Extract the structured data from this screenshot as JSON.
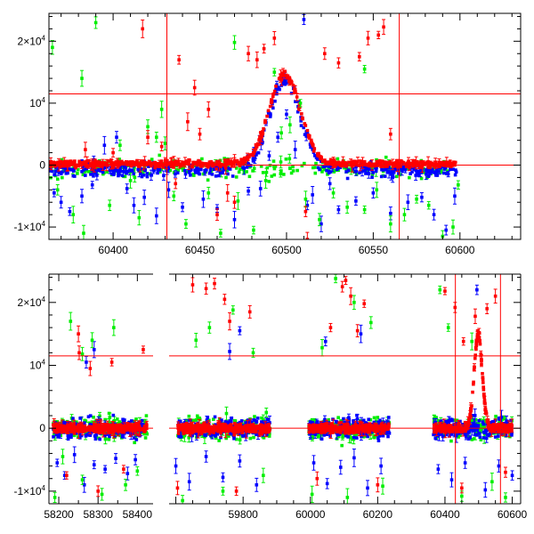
{
  "colors": {
    "red": "#ff0000",
    "green": "#00ee00",
    "blue": "#0000ff",
    "frame": "#000000"
  },
  "chart_data": [
    {
      "type": "scatter",
      "title": "",
      "xlabel": "",
      "ylabel": "",
      "xlim": [
        60363,
        60635
      ],
      "ylim": [
        -12000,
        24500
      ],
      "xticks": [
        {
          "value": 60400,
          "label": "60400"
        },
        {
          "value": 60450,
          "label": "60450"
        },
        {
          "value": 60500,
          "label": "60500"
        },
        {
          "value": 60550,
          "label": "60550"
        },
        {
          "value": 60600,
          "label": "60600"
        }
      ],
      "yticks": [
        {
          "value": -10000,
          "label": "-1×10",
          "exp": "4"
        },
        {
          "value": 0,
          "label": "0",
          "exp": ""
        },
        {
          "value": 10000,
          "label": "10",
          "exp": "4"
        },
        {
          "value": 20000,
          "label": "2×10",
          "exp": "4"
        }
      ],
      "vlines": [
        60431,
        60565
      ],
      "hlines": [
        11500,
        0
      ],
      "series": [
        {
          "color": "blue",
          "values": [
            [
              60366,
              -4500
            ],
            [
              60370,
              -6000
            ],
            [
              60375,
              -7500
            ],
            [
              60382,
              -5000
            ],
            [
              60388,
              -3200
            ],
            [
              60395,
              3200
            ],
            [
              60402,
              4500
            ],
            [
              60408,
              -3800
            ],
            [
              60412,
              -6500
            ],
            [
              60418,
              -5200
            ],
            [
              60425,
              -8200
            ],
            [
              60432,
              -4000
            ],
            [
              60440,
              -6800
            ],
            [
              60452,
              -5500
            ],
            [
              60460,
              -7000
            ],
            [
              60470,
              -8800
            ],
            [
              60478,
              -4200
            ],
            [
              60485,
              -3800
            ],
            [
              60490,
              1500
            ],
            [
              60495,
              4500
            ],
            [
              60500,
              8200
            ],
            [
              60505,
              2500
            ],
            [
              60510,
              23500
            ],
            [
              60512,
              -6500
            ],
            [
              60515,
              -4800
            ],
            [
              60520,
              -9500
            ],
            [
              60525,
              -3000
            ],
            [
              60530,
              -7200
            ],
            [
              60540,
              -5800
            ],
            [
              60550,
              -4500
            ],
            [
              60560,
              -7800
            ],
            [
              60570,
              -6000
            ],
            [
              60578,
              -5200
            ],
            [
              60585,
              -8000
            ],
            [
              60592,
              -10500
            ],
            [
              60597,
              -5000
            ]
          ]
        },
        {
          "color": "green",
          "values": [
            [
              60365,
              19000
            ],
            [
              60368,
              -4000
            ],
            [
              60377,
              -8000
            ],
            [
              60383,
              -11000
            ],
            [
              60390,
              23000
            ],
            [
              60398,
              -6500
            ],
            [
              60404,
              3200
            ],
            [
              60410,
              -2500
            ],
            [
              60415,
              -8500
            ],
            [
              60420,
              6200
            ],
            [
              60425,
              4500
            ],
            [
              60428,
              9000
            ],
            [
              60430,
              3500
            ],
            [
              60435,
              -5000
            ],
            [
              60442,
              -9500
            ],
            [
              60455,
              -4500
            ],
            [
              60462,
              -11000
            ],
            [
              60472,
              -5800
            ],
            [
              60481,
              -10500
            ],
            [
              60488,
              -2500
            ],
            [
              60493,
              15000
            ],
            [
              60497,
              5200
            ],
            [
              60502,
              6500
            ],
            [
              60508,
              10000
            ],
            [
              60511,
              -5500
            ],
            [
              60519,
              -8800
            ],
            [
              60527,
              -4500
            ],
            [
              60535,
              -6800
            ],
            [
              60545,
              -7200
            ],
            [
              60552,
              -4000
            ],
            [
              60560,
              -9500
            ],
            [
              60568,
              -8000
            ],
            [
              60575,
              -5500
            ],
            [
              60582,
              -6500
            ],
            [
              60590,
              -11500
            ],
            [
              60596,
              -10000
            ],
            [
              60599,
              -3200
            ],
            [
              60382,
              14000
            ],
            [
              60545,
              15500
            ],
            [
              60470,
              19800
            ]
          ]
        },
        {
          "color": "red",
          "values": [
            [
              60417,
              22000
            ],
            [
              60438,
              17000
            ],
            [
              60443,
              7000
            ],
            [
              60447,
              12500
            ],
            [
              60450,
              5000
            ],
            [
              60455,
              9000
            ],
            [
              60460,
              -8000
            ],
            [
              60466,
              -4500
            ],
            [
              60478,
              18000
            ],
            [
              60483,
              17000
            ],
            [
              60487,
              18800
            ],
            [
              60493,
              20500
            ],
            [
              60506,
              11000
            ],
            [
              60511,
              -7500
            ],
            [
              60522,
              18000
            ],
            [
              60530,
              16500
            ],
            [
              60542,
              17500
            ],
            [
              60547,
              20500
            ],
            [
              60553,
              21000
            ],
            [
              60556,
              22300
            ],
            [
              60560,
              5000
            ],
            [
              60512,
              -12000
            ],
            [
              60420,
              4500
            ],
            [
              60428,
              3000
            ],
            [
              60384,
              2500
            ],
            [
              60400,
              2000
            ],
            [
              60436,
              -3000
            ],
            [
              60470,
              -6000
            ]
          ]
        }
      ]
    },
    {
      "type": "scatter",
      "title": "",
      "xlabel": "",
      "ylabel": "",
      "x_segments": [
        {
          "xlim": [
            58175,
            58440
          ],
          "ticks": [
            {
              "value": 58200,
              "label": "58200"
            },
            {
              "value": 58300,
              "label": "58300"
            },
            {
              "value": 58400,
              "label": "58400"
            }
          ]
        },
        {
          "xlim": [
            59580,
            60625
          ],
          "ticks": [
            {
              "value": 59800,
              "label": "59800"
            },
            {
              "value": 60000,
              "label": "60000"
            },
            {
              "value": 60200,
              "label": "60200"
            },
            {
              "value": 60400,
              "label": "60400"
            },
            {
              "value": 60600,
              "label": "60600"
            }
          ]
        }
      ],
      "ylim": [
        -12000,
        24500
      ],
      "yticks": [
        {
          "value": -10000,
          "label": "-1×10",
          "exp": "4"
        },
        {
          "value": 0,
          "label": "0",
          "exp": ""
        },
        {
          "value": 10000,
          "label": "10",
          "exp": "4"
        },
        {
          "value": 20000,
          "label": "2×10",
          "exp": "4"
        }
      ],
      "vlines": [
        60431,
        60565
      ],
      "hlines": [
        11500,
        0
      ],
      "series": [
        {
          "color": "blue",
          "values": [
            [
              58196,
              -5500
            ],
            [
              58215,
              -7500
            ],
            [
              58240,
              -4200
            ],
            [
              58265,
              -9000
            ],
            [
              58290,
              -5800
            ],
            [
              58318,
              -6500
            ],
            [
              58345,
              -4800
            ],
            [
              58375,
              -7200
            ],
            [
              58395,
              -5000
            ],
            [
              58290,
              12500
            ],
            [
              58270,
              10500
            ],
            [
              59600,
              -6000
            ],
            [
              59640,
              -8500
            ],
            [
              59690,
              -4500
            ],
            [
              59740,
              -7800
            ],
            [
              59790,
              -5200
            ],
            [
              59840,
              -9000
            ],
            [
              59790,
              15500
            ],
            [
              59760,
              12200
            ],
            [
              60010,
              -5500
            ],
            [
              60050,
              -8800
            ],
            [
              60090,
              -6200
            ],
            [
              60130,
              -4700
            ],
            [
              60170,
              -9500
            ],
            [
              60210,
              -6000
            ],
            [
              60045,
              13800
            ],
            [
              60150,
              15000
            ],
            [
              60380,
              -6500
            ],
            [
              60420,
              -8200
            ],
            [
              60460,
              -5500
            ],
            [
              60520,
              -9800
            ],
            [
              60560,
              -6000
            ],
            [
              60600,
              -7500
            ],
            [
              60495,
              22000
            ]
          ]
        },
        {
          "color": "green",
          "values": [
            [
              58190,
              -11000
            ],
            [
              58210,
              -4500
            ],
            [
              58230,
              17000
            ],
            [
              58260,
              -8200
            ],
            [
              58285,
              14000
            ],
            [
              58310,
              -10500
            ],
            [
              58340,
              16000
            ],
            [
              58370,
              -9000
            ],
            [
              58400,
              -6800
            ],
            [
              58260,
              11800
            ],
            [
              59620,
              -11500
            ],
            [
              59660,
              14000
            ],
            [
              59700,
              16000
            ],
            [
              59740,
              -10000
            ],
            [
              59770,
              18800
            ],
            [
              59830,
              12000
            ],
            [
              59860,
              -7500
            ],
            [
              60005,
              -10500
            ],
            [
              60035,
              12800
            ],
            [
              60075,
              23800
            ],
            [
              60110,
              -11000
            ],
            [
              60130,
              20000
            ],
            [
              60180,
              16800
            ],
            [
              60215,
              -9200
            ],
            [
              60385,
              22000
            ],
            [
              60410,
              16000
            ],
            [
              60450,
              -10800
            ],
            [
              60480,
              13800
            ],
            [
              60540,
              -8500
            ],
            [
              60580,
              -11000
            ]
          ]
        },
        {
          "color": "red",
          "values": [
            [
              58220,
              -7500
            ],
            [
              58250,
              15000
            ],
            [
              58280,
              9500
            ],
            [
              58300,
              -10000
            ],
            [
              58335,
              10500
            ],
            [
              58365,
              -6500
            ],
            [
              58415,
              12500
            ],
            [
              58252,
              12000
            ],
            [
              59605,
              -9500
            ],
            [
              59650,
              22800
            ],
            [
              59690,
              22200
            ],
            [
              59715,
              23000
            ],
            [
              59745,
              20500
            ],
            [
              59780,
              -10000
            ],
            [
              59820,
              18500
            ],
            [
              59760,
              17000
            ],
            [
              60020,
              -8000
            ],
            [
              60060,
              16000
            ],
            [
              60095,
              22500
            ],
            [
              60120,
              21000
            ],
            [
              60160,
              19800
            ],
            [
              60200,
              -9000
            ],
            [
              60140,
              15500
            ],
            [
              60105,
              23500
            ],
            [
              60400,
              21800
            ],
            [
              60430,
              19200
            ],
            [
              60455,
              13800
            ],
            [
              60490,
              17800
            ],
            [
              60525,
              19000
            ],
            [
              60550,
              21000
            ],
            [
              60580,
              -7000
            ],
            [
              60450,
              -9500
            ]
          ]
        }
      ]
    }
  ]
}
